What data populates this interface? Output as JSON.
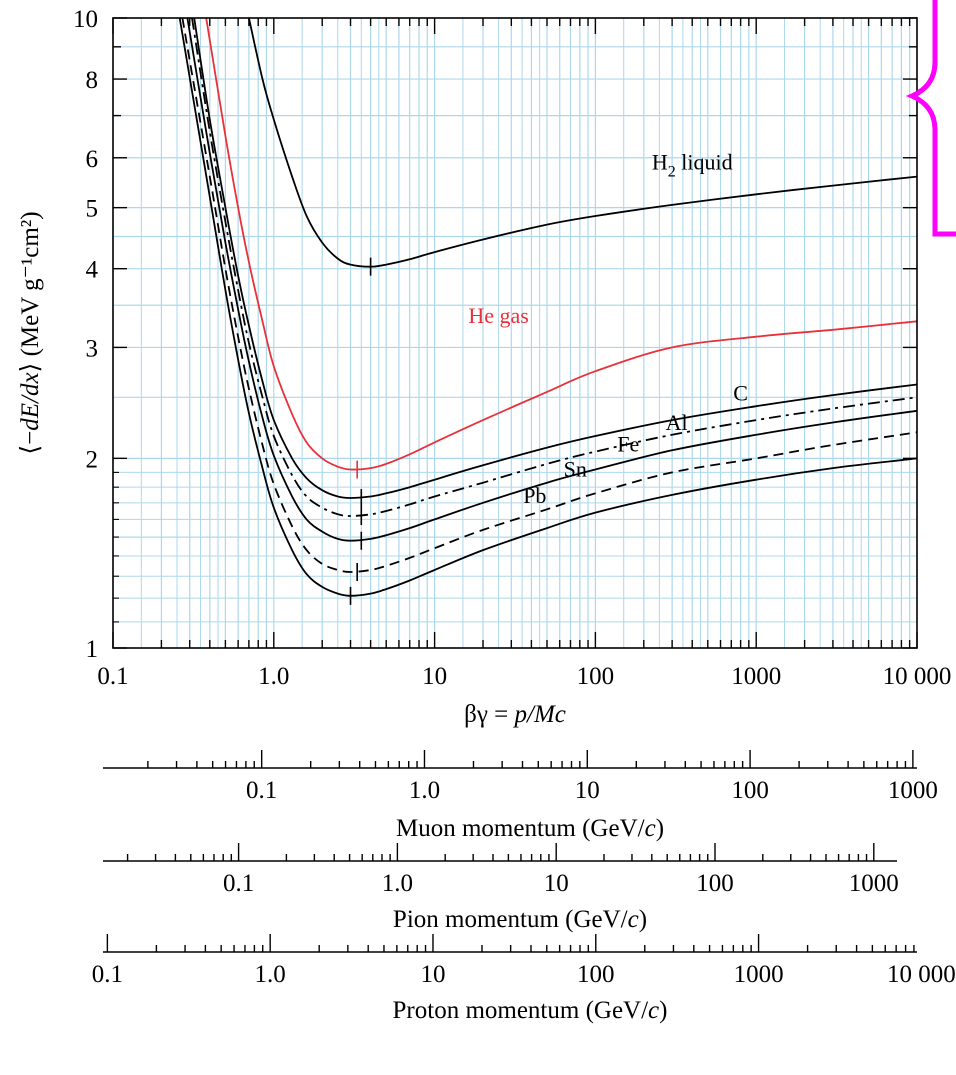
{
  "chart_data": {
    "type": "line",
    "xscale": "log",
    "yscale": "log",
    "xlim": [
      0.1,
      10000
    ],
    "ylim": [
      1,
      10
    ],
    "grid": true,
    "grid_color": "#add8ec",
    "xlabel": "βγ = p/Mc",
    "ylabel": "⟨−dE/dx⟩ (MeV g⁻¹cm²)",
    "x_ticks": [
      {
        "value": 0.1,
        "label": "0.1"
      },
      {
        "value": 1,
        "label": "1.0"
      },
      {
        "value": 10,
        "label": "10"
      },
      {
        "value": 100,
        "label": "100"
      },
      {
        "value": 1000,
        "label": "1000"
      },
      {
        "value": 10000,
        "label": "10 000"
      }
    ],
    "y_ticks": [
      {
        "value": 1,
        "label": "1"
      },
      {
        "value": 2,
        "label": "2"
      },
      {
        "value": 3,
        "label": "3"
      },
      {
        "value": 4,
        "label": "4"
      },
      {
        "value": 5,
        "label": "5"
      },
      {
        "value": 6,
        "label": "6"
      },
      {
        "value": 8,
        "label": "8"
      },
      {
        "value": 10,
        "label": "10"
      }
    ],
    "series": [
      {
        "name": "H2 liquid",
        "label_main": "H",
        "label_sub": "2",
        "label_rest": " liquid",
        "color": "#000000",
        "dash": "",
        "points": [
          [
            0.7,
            10
          ],
          [
            0.85,
            8
          ],
          [
            1,
            6.9
          ],
          [
            1.3,
            5.6
          ],
          [
            1.6,
            4.85
          ],
          [
            2,
            4.4
          ],
          [
            2.5,
            4.15
          ],
          [
            3,
            4.06
          ],
          [
            4,
            4.03
          ],
          [
            5,
            4.06
          ],
          [
            7,
            4.14
          ],
          [
            10,
            4.25
          ],
          [
            20,
            4.45
          ],
          [
            50,
            4.7
          ],
          [
            100,
            4.85
          ],
          [
            300,
            5.05
          ],
          [
            1000,
            5.25
          ],
          [
            3000,
            5.42
          ],
          [
            10000,
            5.6
          ]
        ],
        "min_x": 4,
        "min_y": 4.03
      },
      {
        "name": "He gas",
        "color": "#e8313a",
        "dash": "",
        "points": [
          [
            0.38,
            10
          ],
          [
            0.5,
            6.5
          ],
          [
            0.6,
            5
          ],
          [
            0.7,
            4.1
          ],
          [
            0.85,
            3.3
          ],
          [
            1,
            2.8
          ],
          [
            1.3,
            2.35
          ],
          [
            1.6,
            2.12
          ],
          [
            2,
            2.0
          ],
          [
            2.5,
            1.94
          ],
          [
            3,
            1.92
          ],
          [
            4,
            1.93
          ],
          [
            5,
            1.96
          ],
          [
            7,
            2.03
          ],
          [
            10,
            2.12
          ],
          [
            20,
            2.3
          ],
          [
            50,
            2.55
          ],
          [
            100,
            2.75
          ],
          [
            300,
            3.0
          ],
          [
            1000,
            3.12
          ],
          [
            3000,
            3.2
          ],
          [
            10000,
            3.3
          ]
        ],
        "min_x": 3.3,
        "min_y": 1.92
      },
      {
        "name": "C",
        "color": "#000000",
        "dash": "",
        "points": [
          [
            0.32,
            10
          ],
          [
            0.4,
            6.9
          ],
          [
            0.5,
            5.0
          ],
          [
            0.6,
            3.9
          ],
          [
            0.7,
            3.25
          ],
          [
            0.85,
            2.65
          ],
          [
            1,
            2.3
          ],
          [
            1.3,
            2.0
          ],
          [
            1.6,
            1.86
          ],
          [
            2,
            1.78
          ],
          [
            2.5,
            1.74
          ],
          [
            3,
            1.73
          ],
          [
            4,
            1.74
          ],
          [
            5,
            1.76
          ],
          [
            7,
            1.8
          ],
          [
            10,
            1.85
          ],
          [
            20,
            1.95
          ],
          [
            50,
            2.08
          ],
          [
            100,
            2.17
          ],
          [
            300,
            2.3
          ],
          [
            1000,
            2.42
          ],
          [
            3000,
            2.52
          ],
          [
            10000,
            2.62
          ]
        ],
        "min_x": 3.5,
        "min_y": 1.73
      },
      {
        "name": "Al",
        "color": "#000000",
        "dash": "12 5 3 5",
        "points": [
          [
            0.31,
            10
          ],
          [
            0.4,
            6.6
          ],
          [
            0.5,
            4.75
          ],
          [
            0.6,
            3.7
          ],
          [
            0.7,
            3.05
          ],
          [
            0.85,
            2.5
          ],
          [
            1,
            2.17
          ],
          [
            1.3,
            1.88
          ],
          [
            1.6,
            1.74
          ],
          [
            2,
            1.67
          ],
          [
            2.5,
            1.63
          ],
          [
            3,
            1.62
          ],
          [
            4,
            1.63
          ],
          [
            5,
            1.65
          ],
          [
            7,
            1.69
          ],
          [
            10,
            1.74
          ],
          [
            20,
            1.83
          ],
          [
            50,
            1.96
          ],
          [
            100,
            2.05
          ],
          [
            300,
            2.18
          ],
          [
            1000,
            2.3
          ],
          [
            3000,
            2.4
          ],
          [
            10000,
            2.5
          ]
        ],
        "min_x": 3.5,
        "min_y": 1.62
      },
      {
        "name": "Fe",
        "color": "#000000",
        "dash": "",
        "points": [
          [
            0.29,
            10
          ],
          [
            0.4,
            6.1
          ],
          [
            0.5,
            4.4
          ],
          [
            0.6,
            3.45
          ],
          [
            0.7,
            2.85
          ],
          [
            0.85,
            2.32
          ],
          [
            1,
            2.02
          ],
          [
            1.3,
            1.74
          ],
          [
            1.6,
            1.6
          ],
          [
            2,
            1.53
          ],
          [
            2.5,
            1.49
          ],
          [
            3,
            1.48
          ],
          [
            4,
            1.49
          ],
          [
            5,
            1.51
          ],
          [
            7,
            1.55
          ],
          [
            10,
            1.6
          ],
          [
            20,
            1.7
          ],
          [
            50,
            1.83
          ],
          [
            100,
            1.92
          ],
          [
            300,
            2.06
          ],
          [
            1000,
            2.18
          ],
          [
            3000,
            2.28
          ],
          [
            10000,
            2.38
          ]
        ],
        "min_x": 3.5,
        "min_y": 1.48
      },
      {
        "name": "Sn",
        "color": "#000000",
        "dash": "10 6",
        "points": [
          [
            0.27,
            10
          ],
          [
            0.4,
            5.6
          ],
          [
            0.5,
            4.0
          ],
          [
            0.6,
            3.12
          ],
          [
            0.7,
            2.58
          ],
          [
            0.85,
            2.1
          ],
          [
            1,
            1.82
          ],
          [
            1.3,
            1.56
          ],
          [
            1.6,
            1.43
          ],
          [
            2,
            1.36
          ],
          [
            2.5,
            1.33
          ],
          [
            3,
            1.32
          ],
          [
            4,
            1.33
          ],
          [
            5,
            1.35
          ],
          [
            7,
            1.39
          ],
          [
            10,
            1.44
          ],
          [
            20,
            1.54
          ],
          [
            50,
            1.66
          ],
          [
            100,
            1.76
          ],
          [
            300,
            1.9
          ],
          [
            1000,
            2.0
          ],
          [
            3000,
            2.1
          ],
          [
            10000,
            2.2
          ]
        ],
        "min_x": 3.3,
        "min_y": 1.32
      },
      {
        "name": "Pb",
        "color": "#000000",
        "dash": "",
        "points": [
          [
            0.26,
            10
          ],
          [
            0.4,
            5.2
          ],
          [
            0.5,
            3.7
          ],
          [
            0.6,
            2.87
          ],
          [
            0.7,
            2.36
          ],
          [
            0.85,
            1.93
          ],
          [
            1,
            1.67
          ],
          [
            1.3,
            1.43
          ],
          [
            1.6,
            1.31
          ],
          [
            2,
            1.25
          ],
          [
            2.5,
            1.22
          ],
          [
            3,
            1.21
          ],
          [
            4,
            1.22
          ],
          [
            5,
            1.24
          ],
          [
            7,
            1.28
          ],
          [
            10,
            1.33
          ],
          [
            20,
            1.43
          ],
          [
            50,
            1.55
          ],
          [
            100,
            1.64
          ],
          [
            300,
            1.75
          ],
          [
            1000,
            1.85
          ],
          [
            3000,
            1.93
          ],
          [
            10000,
            2.0
          ]
        ],
        "min_x": 3.0,
        "min_y": 1.21
      }
    ],
    "momentum_scales": [
      {
        "title_plain": "Muon momentum (GeV/",
        "title_italic": "c",
        "title_close": ")",
        "range": [
          0.0106,
          1060
        ],
        "labels": [
          {
            "value": 0.1,
            "label": "0.1"
          },
          {
            "value": 1,
            "label": "1.0"
          },
          {
            "value": 10,
            "label": "10"
          },
          {
            "value": 100,
            "label": "100"
          },
          {
            "value": 1000,
            "label": "1000"
          }
        ]
      },
      {
        "title_plain": "Pion momentum (GeV/",
        "title_italic": "c",
        "title_close": ")",
        "range": [
          0.014,
          1400
        ],
        "labels": [
          {
            "value": 0.1,
            "label": "0.1"
          },
          {
            "value": 1,
            "label": "1.0"
          },
          {
            "value": 10,
            "label": "10"
          },
          {
            "value": 100,
            "label": "100"
          },
          {
            "value": 1000,
            "label": "1000"
          }
        ]
      },
      {
        "title_plain": "Proton momentum (GeV/",
        "title_italic": "c",
        "title_close": ")",
        "range": [
          0.094,
          9400
        ],
        "labels": [
          {
            "value": 0.1,
            "label": "0.1"
          },
          {
            "value": 1,
            "label": "1.0"
          },
          {
            "value": 10,
            "label": "10"
          },
          {
            "value": 100,
            "label": "100"
          },
          {
            "value": 1000,
            "label": "1000"
          },
          {
            "value": 10000,
            "label": "10 000"
          }
        ]
      }
    ],
    "annotation": {
      "type": "curly-brace",
      "color": "#ff00ff"
    }
  }
}
